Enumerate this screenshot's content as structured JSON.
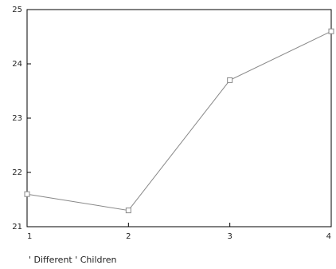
{
  "chart_data": {
    "type": "line",
    "title": "",
    "xlabel": "' Different ' Children",
    "ylabel": "",
    "x": [
      1,
      2,
      3,
      4
    ],
    "series": [
      {
        "values": [
          21.6,
          21.3,
          23.7,
          24.6
        ],
        "color": "#888888",
        "marker": "open-square"
      }
    ],
    "xticks": [
      "1",
      "2",
      "3",
      "4"
    ],
    "yticks": [
      "21",
      "22",
      "23",
      "24",
      "25"
    ],
    "xlim": [
      1,
      4
    ],
    "ylim": [
      21,
      25
    ],
    "grid": false,
    "frame": true,
    "axis_color": "#000000"
  }
}
